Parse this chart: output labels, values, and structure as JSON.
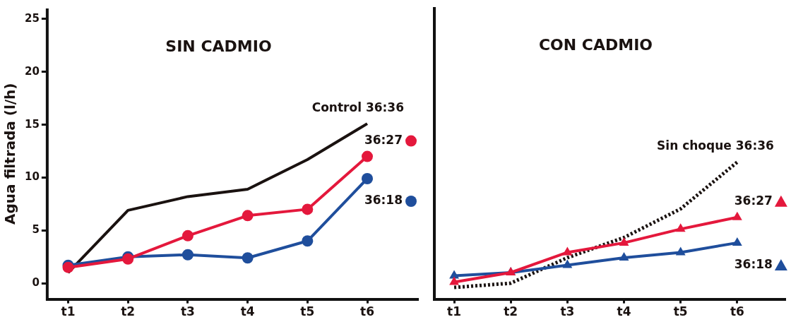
{
  "chart_data": [
    {
      "type": "line",
      "title": "SIN CADMIO",
      "ylabel": "Agua filtrada (l/h)",
      "categories": [
        "t1",
        "t2",
        "t3",
        "t4",
        "t5",
        "t6"
      ],
      "ylim": [
        -1.5,
        26
      ],
      "yticks": [
        0,
        5,
        10,
        15,
        20,
        25
      ],
      "grid": false,
      "legend": "right",
      "series": [
        {
          "name": "Control 36:36",
          "color": "#1a1210",
          "marker": "none",
          "line_style": "solid",
          "values": [
            1.0,
            6.9,
            8.2,
            8.9,
            11.7,
            15.1
          ]
        },
        {
          "name": "36:18",
          "color": "#1f4e9c",
          "marker": "circle",
          "line_style": "solid",
          "values": [
            1.7,
            2.5,
            2.7,
            2.4,
            4.0,
            9.9
          ]
        },
        {
          "name": "36:27",
          "color": "#e4183c",
          "marker": "circle",
          "line_style": "solid",
          "values": [
            1.5,
            2.3,
            4.5,
            6.4,
            7.0,
            12.0
          ]
        }
      ]
    },
    {
      "type": "line",
      "title": "CON CADMIO",
      "categories": [
        "t1",
        "t2",
        "t3",
        "t4",
        "t5",
        "t6"
      ],
      "ylim": [
        -1.5,
        26
      ],
      "yticks": [
        0,
        5,
        10,
        15,
        20,
        25
      ],
      "grid": false,
      "legend": "right",
      "tick_labels": "x",
      "series": [
        {
          "name": "Sin choque 36:36",
          "color": "#1a1210",
          "marker": "none",
          "line_style": "dotted",
          "values": [
            -0.4,
            0.0,
            2.4,
            4.3,
            7.0,
            11.4
          ]
        },
        {
          "name": "36:18",
          "color": "#1f4e9c",
          "marker": "triangle",
          "line_style": "solid",
          "values": [
            0.7,
            1.0,
            1.7,
            2.4,
            2.9,
            3.8
          ]
        },
        {
          "name": "36:27",
          "color": "#e4183c",
          "marker": "triangle",
          "line_style": "solid",
          "values": [
            0.1,
            1.0,
            2.9,
            3.8,
            5.1,
            6.2
          ]
        }
      ]
    }
  ]
}
